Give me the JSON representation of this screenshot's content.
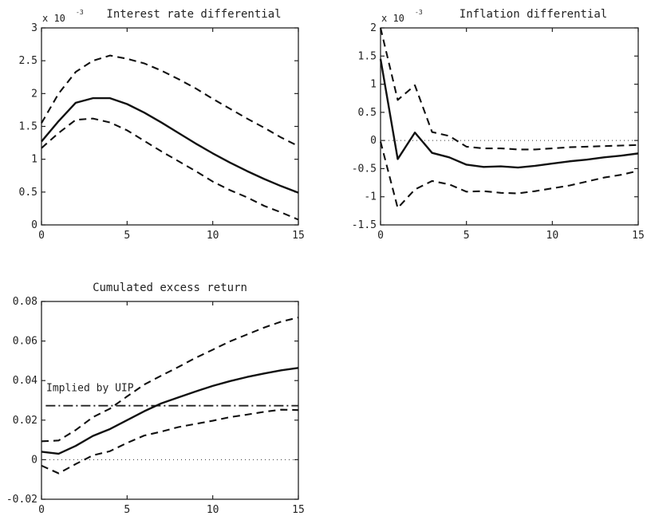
{
  "chart_data": [
    {
      "type": "line",
      "title": "Interest rate differential",
      "scale_note": "x 10",
      "scale_exp": "-3",
      "xlim": [
        0,
        15
      ],
      "ylim": [
        0,
        3
      ],
      "xticks": [
        "0",
        "5",
        "10",
        "15"
      ],
      "yticks": [
        "0",
        "0.5",
        "1",
        "1.5",
        "2",
        "2.5",
        "3"
      ],
      "x": [
        0,
        1,
        2,
        3,
        4,
        5,
        6,
        7,
        8,
        9,
        10,
        11,
        12,
        13,
        14,
        15
      ],
      "series": [
        {
          "style": "solid",
          "values": [
            1.27,
            1.58,
            1.86,
            1.93,
            1.93,
            1.84,
            1.71,
            1.56,
            1.4,
            1.24,
            1.09,
            0.95,
            0.82,
            0.7,
            0.59,
            0.49
          ]
        },
        {
          "style": "dashed",
          "values": [
            1.55,
            2.0,
            2.33,
            2.5,
            2.58,
            2.53,
            2.46,
            2.35,
            2.22,
            2.08,
            1.92,
            1.77,
            1.62,
            1.48,
            1.33,
            1.2
          ]
        },
        {
          "style": "dashed",
          "values": [
            1.17,
            1.4,
            1.6,
            1.62,
            1.56,
            1.44,
            1.28,
            1.12,
            0.97,
            0.82,
            0.66,
            0.53,
            0.42,
            0.29,
            0.19,
            0.08
          ]
        }
      ]
    },
    {
      "type": "line",
      "title": "Inflation differential",
      "scale_note": "x 10",
      "scale_exp": "-3",
      "xlim": [
        0,
        15
      ],
      "ylim": [
        -1.5,
        2
      ],
      "xticks": [
        "0",
        "5",
        "10",
        "15"
      ],
      "yticks": [
        "-1.5",
        "-1",
        "-0.5",
        "0",
        "0.5",
        "1",
        "1.5",
        "2"
      ],
      "zero_line": "dotted",
      "x": [
        0,
        1,
        2,
        3,
        4,
        5,
        6,
        7,
        8,
        9,
        10,
        11,
        12,
        13,
        14,
        15
      ],
      "series": [
        {
          "style": "solid",
          "values": [
            1.45,
            -0.33,
            0.14,
            -0.22,
            -0.3,
            -0.43,
            -0.47,
            -0.46,
            -0.48,
            -0.45,
            -0.41,
            -0.37,
            -0.34,
            -0.3,
            -0.27,
            -0.23
          ]
        },
        {
          "style": "dashed",
          "values": [
            2.0,
            0.72,
            0.98,
            0.15,
            0.08,
            -0.11,
            -0.14,
            -0.14,
            -0.16,
            -0.16,
            -0.14,
            -0.12,
            -0.11,
            -0.1,
            -0.09,
            -0.08
          ]
        },
        {
          "style": "dashed",
          "values": [
            -0.02,
            -1.2,
            -0.87,
            -0.72,
            -0.78,
            -0.91,
            -0.9,
            -0.93,
            -0.94,
            -0.9,
            -0.85,
            -0.8,
            -0.73,
            -0.66,
            -0.61,
            -0.54
          ]
        }
      ]
    },
    {
      "type": "line",
      "title": "Cumulated excess return",
      "xlim": [
        0,
        15
      ],
      "ylim": [
        -0.02,
        0.08
      ],
      "xticks": [
        "0",
        "5",
        "10",
        "15"
      ],
      "yticks": [
        "-0.02",
        "0",
        "0.02",
        "0.04",
        "0.06",
        "0.08"
      ],
      "zero_line": "dotted",
      "annotation": "Implied by UIP",
      "uip_level": 0.0273,
      "x": [
        0,
        1,
        2,
        3,
        4,
        5,
        6,
        7,
        8,
        9,
        10,
        11,
        12,
        13,
        14,
        15
      ],
      "series": [
        {
          "style": "solid",
          "values": [
            0.004,
            0.003,
            0.007,
            0.012,
            0.0155,
            0.02,
            0.0245,
            0.0285,
            0.0315,
            0.0345,
            0.0373,
            0.0397,
            0.0418,
            0.0436,
            0.0452,
            0.0464
          ]
        },
        {
          "style": "dashed",
          "values": [
            0.0093,
            0.0097,
            0.015,
            0.0215,
            0.0258,
            0.032,
            0.038,
            0.0425,
            0.0469,
            0.0515,
            0.0556,
            0.0598,
            0.0633,
            0.0668,
            0.0698,
            0.0719
          ]
        },
        {
          "style": "dashed",
          "values": [
            -0.003,
            -0.0069,
            -0.0022,
            0.0022,
            0.0043,
            0.0085,
            0.0122,
            0.0142,
            0.0165,
            0.0181,
            0.0197,
            0.0215,
            0.0228,
            0.0242,
            0.0253,
            0.0251
          ]
        }
      ]
    }
  ]
}
